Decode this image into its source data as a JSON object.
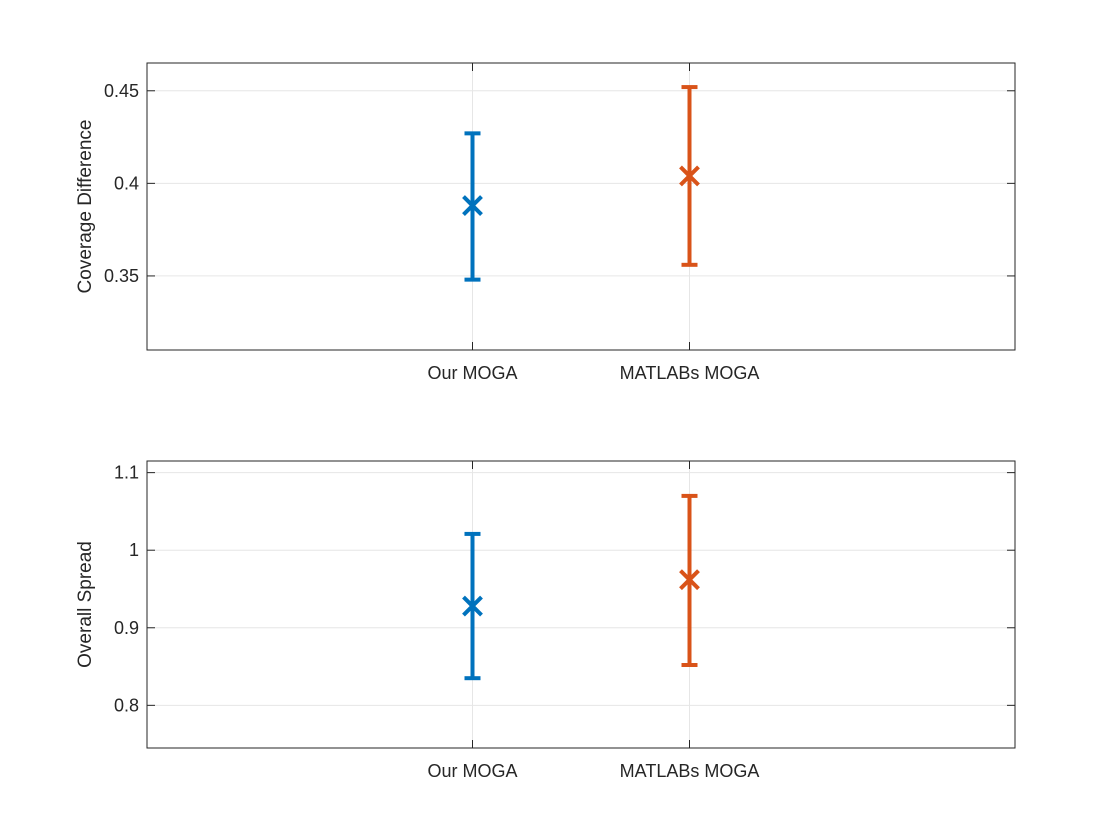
{
  "chart_data": [
    {
      "type": "errorbar",
      "categories": [
        "Our MOGA",
        "MATLABs MOGA"
      ],
      "ylabel": "Coverage Difference",
      "xlim": [
        0,
        4
      ],
      "ylim": [
        0.31,
        0.465
      ],
      "yticks": [
        0.35,
        0.4,
        0.45
      ],
      "ytick_labels": [
        "0.35",
        "0.4",
        "0.45"
      ],
      "grid": true,
      "series": [
        {
          "category": "Our MOGA",
          "mean": 0.388,
          "lower": 0.348,
          "upper": 0.427,
          "color": "#0072BD"
        },
        {
          "category": "MATLABs MOGA",
          "mean": 0.404,
          "lower": 0.356,
          "upper": 0.452,
          "color": "#D95319"
        }
      ]
    },
    {
      "type": "errorbar",
      "categories": [
        "Our MOGA",
        "MATLABs MOGA"
      ],
      "ylabel": "Overall Spread",
      "xlim": [
        0,
        4
      ],
      "ylim": [
        0.745,
        1.115
      ],
      "yticks": [
        0.8,
        0.9,
        1,
        1.1
      ],
      "ytick_labels": [
        "0.8",
        "0.9",
        "1",
        "1.1"
      ],
      "grid": true,
      "series": [
        {
          "category": "Our MOGA",
          "mean": 0.928,
          "lower": 0.835,
          "upper": 1.021,
          "color": "#0072BD"
        },
        {
          "category": "MATLABs MOGA",
          "mean": 0.962,
          "lower": 0.852,
          "upper": 1.07,
          "color": "#D95319"
        }
      ]
    }
  ]
}
